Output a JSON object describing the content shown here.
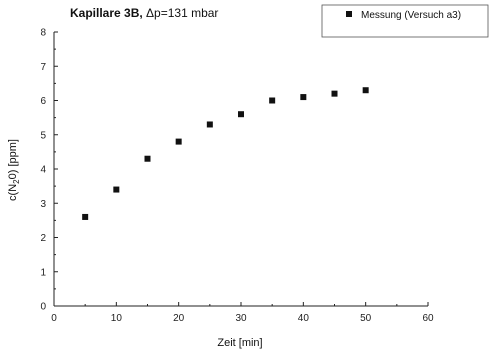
{
  "chart_data": {
    "type": "scatter",
    "title_bold": "Kapillare 3B,",
    "title_rest": " Δp=131 mbar",
    "xlabel": "Zeit [min]",
    "ylabel_parts": {
      "before": "c(N",
      "subscript": "2",
      "after": "0) [ppm]"
    },
    "xlim": [
      0,
      60
    ],
    "ylim": [
      0,
      8
    ],
    "x_ticks": [
      0,
      10,
      20,
      30,
      40,
      50,
      60
    ],
    "y_ticks": [
      0,
      1,
      2,
      3,
      4,
      5,
      6,
      7,
      8
    ],
    "legend_position": "top-right",
    "grid": false,
    "marker_color": "#111111",
    "series": [
      {
        "name": "Messung (Versuch a3)",
        "x": [
          5,
          10,
          15,
          20,
          25,
          30,
          35,
          40,
          45,
          50
        ],
        "y": [
          2.6,
          3.4,
          4.3,
          4.8,
          5.3,
          5.6,
          6.0,
          6.1,
          6.2,
          6.3
        ]
      }
    ]
  }
}
